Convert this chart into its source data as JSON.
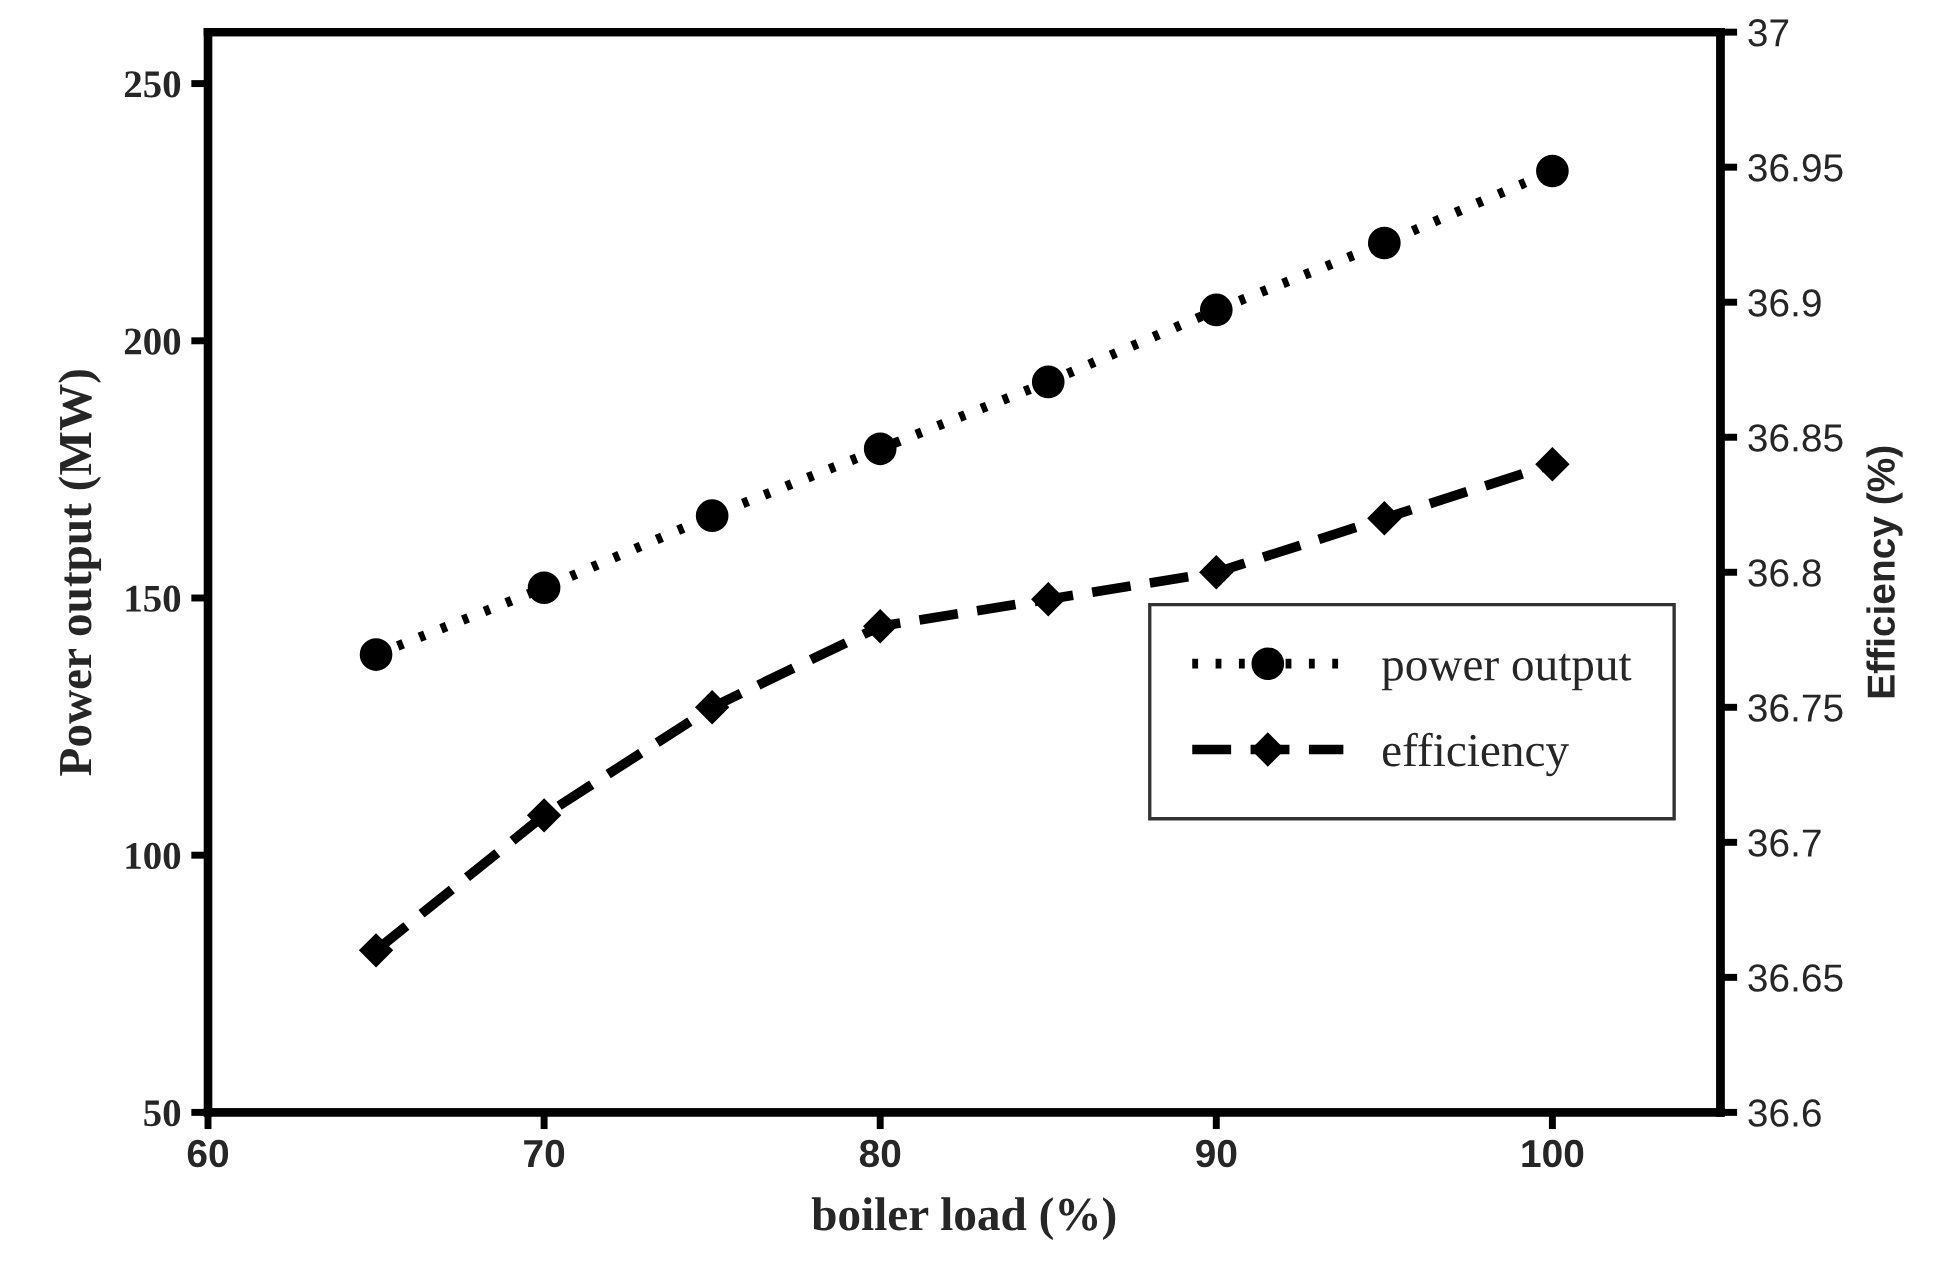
{
  "chart_data": {
    "type": "line",
    "xlabel": "boiler load (%)",
    "ylabel": "Power output (MW)",
    "y2label": "Efficiency (%)",
    "x": [
      65,
      70,
      75,
      80,
      85,
      90,
      95,
      100
    ],
    "series": [
      {
        "name": "power output",
        "color": "#000000",
        "marker": "circle",
        "line_style": "dotted",
        "values": [
          139,
          152,
          166,
          179,
          192,
          206,
          219,
          233
        ]
      },
      {
        "name": "efficiency",
        "color": "#000000",
        "marker": "diamond",
        "line_style": "dashed",
        "axis": "y2",
        "values": [
          36.66,
          36.71,
          36.75,
          36.78,
          36.79,
          36.8,
          36.82,
          36.84
        ]
      }
    ],
    "xlim": [
      60,
      105
    ],
    "xticks": [
      60,
      70,
      80,
      90,
      100
    ],
    "ylim": [
      50,
      260
    ],
    "yticks": [
      50,
      100,
      150,
      200,
      250
    ],
    "y2lim": [
      36.6,
      37
    ],
    "y2ticks": [
      {
        "value": 36.6,
        "label": "36.6"
      },
      {
        "value": 36.65,
        "label": "36.65"
      },
      {
        "value": 36.7,
        "label": "36.7"
      },
      {
        "value": 36.75,
        "label": "36.75"
      },
      {
        "value": 36.8,
        "label": "36.8"
      },
      {
        "value": 36.85,
        "label": "36.85"
      },
      {
        "value": 36.9,
        "label": "36.9"
      },
      {
        "value": 36.95,
        "label": "36.95"
      },
      {
        "value": 37,
        "label": "37"
      }
    ],
    "grid": false,
    "legend": "bottom right"
  }
}
